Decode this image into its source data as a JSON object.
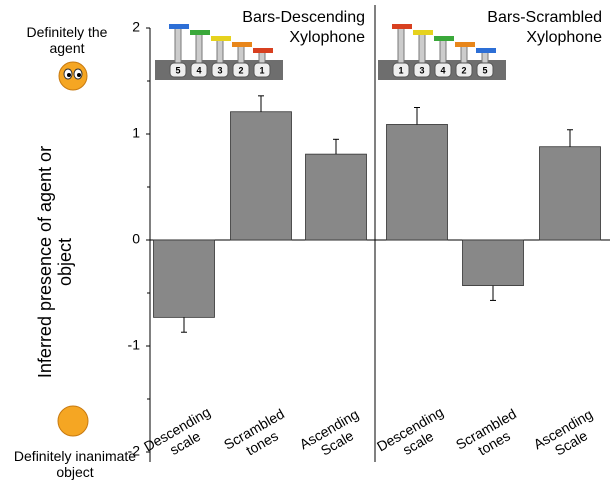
{
  "chart_data": [
    {
      "type": "bar",
      "inset_title": [
        "Bars-Descending",
        "Xylophone"
      ],
      "inset_keys": [
        "5",
        "4",
        "3",
        "2",
        "1"
      ],
      "categories": [
        "Descending scale",
        "Scrambled tones",
        "Ascending Scale"
      ],
      "values": [
        -0.73,
        1.21,
        0.81
      ],
      "errors": [
        0.14,
        0.15,
        0.14
      ],
      "color": "#888888",
      "ylim": [
        -2,
        2
      ],
      "yticks": [
        -2,
        -1,
        0,
        1,
        2
      ],
      "yminor_ticks": [
        -1.5,
        -0.5,
        0.5,
        1.5
      ],
      "ylabel": "Inferred presence of agent or object",
      "annotations": [
        "Definitely the agent",
        "Definitely inanimate object"
      ]
    },
    {
      "type": "bar",
      "inset_title": [
        "Bars-Scrambled",
        "Xylophone"
      ],
      "inset_keys": [
        "1",
        "3",
        "4",
        "2",
        "5"
      ],
      "categories": [
        "Descending scale",
        "Scrambled tones",
        "Ascending Scale"
      ],
      "values": [
        1.09,
        -0.43,
        0.88
      ],
      "errors": [
        0.16,
        0.14,
        0.16
      ],
      "color": "#888888",
      "ylim": [
        -2,
        2
      ]
    }
  ]
}
